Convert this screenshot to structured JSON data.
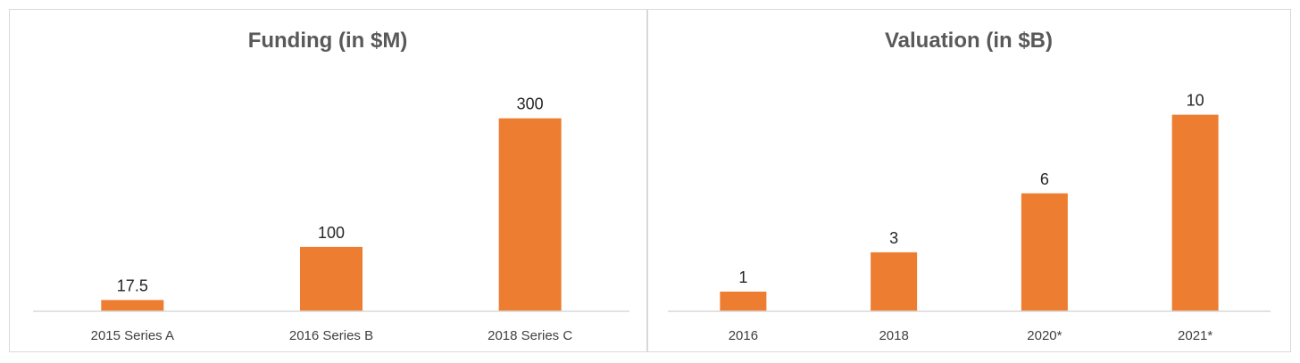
{
  "chart_data": [
    {
      "type": "bar",
      "title": "Funding (in $M)",
      "categories": [
        "2015 Series A",
        "2016 Series B",
        "2018 Series C"
      ],
      "values": [
        17.5,
        100,
        300
      ],
      "value_labels": [
        "17.5",
        "100",
        "300"
      ],
      "ylim": [
        0,
        330
      ],
      "grid": false,
      "legend": "none",
      "color": "#ED7D31"
    },
    {
      "type": "bar",
      "title": "Valuation (in $B)",
      "categories": [
        "2016",
        "2018",
        "2020*",
        "2021*"
      ],
      "values": [
        1,
        3,
        6,
        10
      ],
      "value_labels": [
        "1",
        "3",
        "6",
        "10"
      ],
      "ylim": [
        0,
        10.8
      ],
      "grid": false,
      "legend": "none",
      "color": "#ED7D31"
    }
  ]
}
